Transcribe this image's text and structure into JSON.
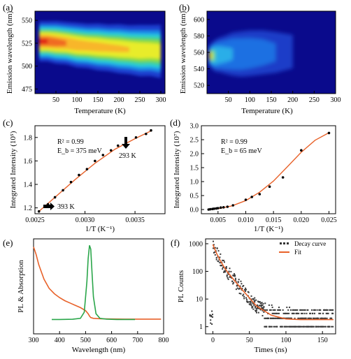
{
  "chart_data": [
    {
      "panel": "(a)",
      "type": "heatmap",
      "xlabel": "Temperature (K)",
      "ylabel": "Emission wavelength (nm)",
      "xlim": [
        0,
        310
      ],
      "ylim": [
        470,
        560
      ],
      "xticks": [
        50,
        100,
        150,
        200,
        250,
        300
      ],
      "yticks": [
        475,
        500,
        525,
        550
      ],
      "ridge": {
        "temperature": [
          10,
          30,
          50,
          75,
          100,
          125,
          150,
          175,
          200,
          225,
          250,
          275,
          300
        ],
        "peak_wavelength": [
          527,
          527,
          526,
          525,
          523,
          522,
          521,
          520,
          519,
          518,
          517,
          517,
          516
        ],
        "fwhm": [
          14,
          14,
          15,
          15,
          16,
          16,
          17,
          17,
          18,
          18,
          19,
          19,
          20
        ],
        "relative_intensity": [
          1.0,
          1.0,
          0.95,
          0.9,
          0.85,
          0.82,
          0.8,
          0.78,
          0.76,
          0.74,
          0.72,
          0.7,
          0.68
        ]
      }
    },
    {
      "panel": "(b)",
      "type": "heatmap",
      "xlabel": "Temperature (K)",
      "ylabel": "Emission wavelength (nm)",
      "xlim": [
        0,
        300
      ],
      "ylim": [
        510,
        610
      ],
      "xticks": [
        50,
        100,
        150,
        200,
        250,
        300
      ],
      "yticks": [
        520,
        540,
        560,
        580,
        600
      ],
      "ridge": {
        "temperature": [
          5,
          10,
          15,
          20,
          30,
          40,
          60,
          80,
          100,
          130,
          160,
          200
        ],
        "peak_wavelength": [
          556,
          556,
          556,
          556,
          557,
          557,
          558,
          558,
          559,
          560,
          560,
          561
        ],
        "fwhm": [
          8,
          10,
          12,
          14,
          16,
          18,
          22,
          24,
          25,
          26,
          27,
          27
        ],
        "relative_intensity": [
          1.0,
          0.92,
          0.8,
          0.66,
          0.5,
          0.42,
          0.34,
          0.3,
          0.27,
          0.22,
          0.17,
          0.12
        ]
      }
    },
    {
      "panel": "(c)",
      "type": "scatter",
      "xlabel": "1/T (K⁻¹)",
      "ylabel": "Integrated Intensity (10⁵)",
      "xlim": [
        0.0025,
        0.0038
      ],
      "ylim": [
        1.15,
        1.9
      ],
      "xticks": [
        "0.0025",
        "0.0030",
        "0.0035"
      ],
      "yticks": [
        "1.2",
        "1.4",
        "1.6",
        "1.8"
      ],
      "points": {
        "x": [
          0.00254,
          0.00263,
          0.0027,
          0.00278,
          0.00286,
          0.00294,
          0.00302,
          0.0031,
          0.00318,
          0.00326,
          0.00333,
          0.00341,
          0.00351,
          0.00361,
          0.00366
        ],
        "y": [
          1.17,
          1.23,
          1.29,
          1.35,
          1.42,
          1.48,
          1.53,
          1.6,
          1.65,
          1.69,
          1.73,
          1.77,
          1.8,
          1.83,
          1.86
        ]
      },
      "fit": {
        "x": [
          0.00254,
          0.0027,
          0.0029,
          0.0031,
          0.0033,
          0.0035,
          0.00367
        ],
        "y": [
          1.17,
          1.29,
          1.44,
          1.58,
          1.7,
          1.79,
          1.86
        ]
      },
      "annotations": [
        {
          "line1": "R² = 0.99",
          "line2": "E_b = 375 meV"
        },
        {
          "text": "293 K"
        },
        {
          "text": "393 K"
        }
      ]
    },
    {
      "panel": "(d)",
      "type": "scatter",
      "xlabel": "1/T (K⁻¹)",
      "ylabel": "Integrated Intensity (10⁷)",
      "xlim": [
        0.002,
        0.0262
      ],
      "ylim": [
        -0.15,
        3.0
      ],
      "xticks": [
        "0.005",
        "0.010",
        "0.015",
        "0.020",
        "0.025"
      ],
      "yticks": [
        "0.0",
        "0.5",
        "1.0",
        "1.5",
        "2.0",
        "2.5",
        "3.0"
      ],
      "points": {
        "x": [
          0.0033,
          0.0036,
          0.004,
          0.0043,
          0.0047,
          0.005,
          0.0055,
          0.006,
          0.0067,
          0.0077,
          0.01,
          0.0111,
          0.0125,
          0.0143,
          0.0167,
          0.02,
          0.025
        ],
        "y": [
          0.0,
          0.01,
          0.02,
          0.03,
          0.04,
          0.05,
          0.07,
          0.08,
          0.1,
          0.15,
          0.35,
          0.45,
          0.55,
          0.82,
          1.15,
          2.12,
          2.74
        ]
      },
      "fit": {
        "x": [
          0.0033,
          0.005,
          0.0075,
          0.01,
          0.0125,
          0.015,
          0.0175,
          0.02,
          0.0225,
          0.025
        ],
        "y": [
          0.0,
          0.03,
          0.13,
          0.32,
          0.62,
          1.02,
          1.53,
          2.05,
          2.48,
          2.75
        ]
      },
      "annotations": [
        {
          "line1": "R² = 0.99",
          "line2": "E_b = 65 meV"
        }
      ]
    },
    {
      "panel": "(e)",
      "type": "line",
      "xlabel": "Wavelength (nm)",
      "ylabel": "PL & Absorption",
      "xlim": [
        300,
        800
      ],
      "xticks": [
        300,
        400,
        500,
        600,
        700,
        800
      ],
      "series": [
        {
          "color": "#e8622a",
          "x": [
            300,
            310,
            320,
            340,
            360,
            380,
            400,
            420,
            440,
            460,
            480,
            500,
            510,
            515,
            520,
            530,
            560,
            600,
            650,
            700,
            750,
            790
          ],
          "y": [
            0.95,
            0.85,
            0.72,
            0.53,
            0.41,
            0.34,
            0.29,
            0.25,
            0.22,
            0.19,
            0.16,
            0.12,
            0.08,
            0.05,
            0.03,
            0.02,
            0.015,
            0.012,
            0.01,
            0.01,
            0.01,
            0.01
          ]
        },
        {
          "color": "#2aa64a",
          "x": [
            370,
            400,
            450,
            480,
            495,
            505,
            510,
            515,
            520,
            525,
            530,
            540,
            555,
            580,
            620,
            690
          ],
          "y": [
            0.005,
            0.005,
            0.008,
            0.02,
            0.1,
            0.5,
            0.8,
            0.97,
            0.92,
            0.6,
            0.3,
            0.08,
            0.02,
            0.01,
            0.005,
            0.005
          ]
        }
      ]
    },
    {
      "panel": "(f)",
      "type": "scatter",
      "xlabel": "Times (ns)",
      "ylabel": "PL Counts",
      "ylog": true,
      "xlim": [
        -10,
        168
      ],
      "ylim": [
        0.55,
        1500
      ],
      "xticks": [
        0,
        50,
        100,
        150
      ],
      "yticks": [
        "1",
        "10",
        "100",
        "1000"
      ],
      "series": [
        {
          "name": "Decay curve",
          "color": "#333333"
        },
        {
          "name": "Fit",
          "color": "#e8622a"
        }
      ],
      "fit": {
        "x": [
          0,
          2,
          5,
          10,
          15,
          20,
          30,
          40,
          50,
          60,
          80,
          100,
          120,
          165
        ],
        "y": [
          950,
          700,
          450,
          250,
          150,
          95,
          45,
          22,
          11,
          5.5,
          2.6,
          1.9,
          1.8,
          1.8
        ]
      }
    }
  ]
}
